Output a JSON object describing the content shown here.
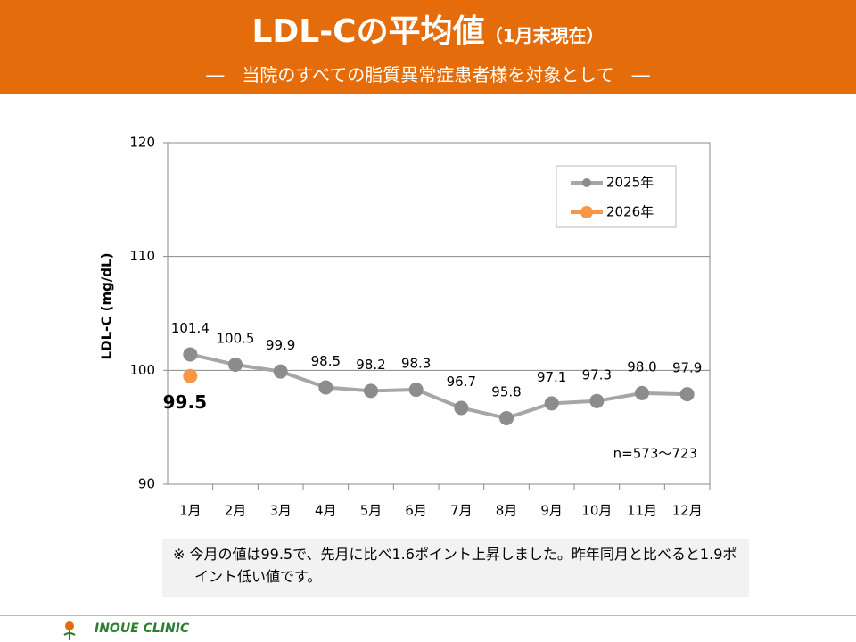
{
  "header": {
    "title": "LDL-Cの平均値",
    "title_suffix": "（1月末現在）",
    "subtitle": "―　当院のすべての脂質異常症患者様を対象として　―"
  },
  "chart_data": {
    "type": "line",
    "y_label": "LDL-C (mg/dL)",
    "categories": [
      "1月",
      "2月",
      "3月",
      "4月",
      "5月",
      "6月",
      "7月",
      "8月",
      "9月",
      "10月",
      "11月",
      "12月"
    ],
    "series": [
      {
        "name": "2025年",
        "color": "#a6a6a6",
        "marker_color": "#8c8c8c",
        "values": [
          101.4,
          100.5,
          99.9,
          98.5,
          98.2,
          98.3,
          96.7,
          95.8,
          97.1,
          97.3,
          98.0,
          97.9
        ],
        "value_labels": [
          "101.4",
          "100.5",
          "99.9",
          "98.5",
          "98.2",
          "98.3",
          "96.7",
          "95.8",
          "97.1",
          "97.3",
          "98.0",
          "97.9"
        ]
      },
      {
        "name": "2026年",
        "color": "#f79646",
        "marker_color": "#f79646",
        "label_color": "#e60000",
        "values": [
          99.5,
          null,
          null,
          null,
          null,
          null,
          null,
          null,
          null,
          null,
          null,
          null
        ],
        "value_labels": [
          "99.5",
          null,
          null,
          null,
          null,
          null,
          null,
          null,
          null,
          null,
          null,
          null
        ]
      }
    ],
    "ylim": [
      90,
      120
    ],
    "yticks": [
      90,
      100,
      110,
      120
    ],
    "grid": true,
    "legend": "upper right",
    "annotation": "n=573～723"
  },
  "note": "※ 今月の値は99.5で、先月に比べ1.6ポイント上昇しました。昨年同月と比べると1.9ポイント低い値です。",
  "footer": {
    "clinic": "INOUE CLINIC"
  }
}
